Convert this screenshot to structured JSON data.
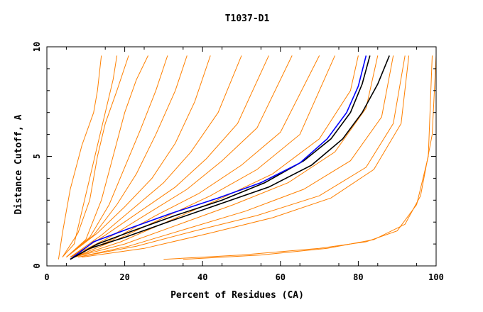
{
  "chart_data": {
    "type": "line",
    "title": "T1037-D1",
    "xlabel": "Percent of Residues (CA)",
    "ylabel": "Distance Cutoff, A",
    "xlim": [
      0,
      100
    ],
    "ylim": [
      0,
      10
    ],
    "x_ticks": [
      "0",
      "20",
      "40",
      "60",
      "80",
      "100"
    ],
    "y_ticks": [
      "0",
      "5",
      "10"
    ],
    "grid": false,
    "legend": "none",
    "colors": {
      "models": "#ff8000",
      "highlight_a": "#000000",
      "highlight_b": "#0000ff",
      "highlight_c": "#000000"
    },
    "series": [
      {
        "values": [
          [
            3,
            0.3
          ],
          [
            4,
            1.5
          ],
          [
            6,
            3.5
          ],
          [
            9,
            5.5
          ],
          [
            12,
            7
          ],
          [
            13,
            8
          ],
          [
            14,
            9.6
          ]
        ]
      },
      {
        "values": [
          [
            4,
            0.4
          ],
          [
            7,
            1
          ],
          [
            9,
            2.5
          ],
          [
            11,
            4
          ],
          [
            13,
            5.5
          ],
          [
            15,
            7
          ],
          [
            17,
            8.5
          ],
          [
            18,
            9.6
          ]
        ]
      },
      {
        "values": [
          [
            4,
            0.4
          ],
          [
            8,
            1.5
          ],
          [
            11,
            3
          ],
          [
            13,
            5
          ],
          [
            15,
            6.5
          ],
          [
            18,
            8
          ],
          [
            21,
            9.6
          ]
        ]
      },
      {
        "values": [
          [
            5,
            0.4
          ],
          [
            10,
            1.2
          ],
          [
            14,
            3
          ],
          [
            17,
            5
          ],
          [
            20,
            7
          ],
          [
            23,
            8.5
          ],
          [
            26,
            9.6
          ]
        ]
      },
      {
        "values": [
          [
            5,
            0.4
          ],
          [
            11,
            1.3
          ],
          [
            16,
            2.8
          ],
          [
            20,
            4.5
          ],
          [
            24,
            6.2
          ],
          [
            28,
            8
          ],
          [
            31,
            9.6
          ]
        ]
      },
      {
        "values": [
          [
            5,
            0.4
          ],
          [
            12,
            1.4
          ],
          [
            18,
            2.8
          ],
          [
            23,
            4.2
          ],
          [
            28,
            6
          ],
          [
            33,
            8
          ],
          [
            36,
            9.6
          ]
        ]
      },
      {
        "values": [
          [
            5,
            0.4
          ],
          [
            13,
            1.5
          ],
          [
            20,
            2.7
          ],
          [
            27,
            4
          ],
          [
            33,
            5.6
          ],
          [
            38,
            7.5
          ],
          [
            42,
            9.6
          ]
        ]
      },
      {
        "values": [
          [
            6,
            0.4
          ],
          [
            14,
            1.4
          ],
          [
            22,
            2.6
          ],
          [
            30,
            3.8
          ],
          [
            37,
            5.2
          ],
          [
            44,
            7
          ],
          [
            50,
            9.6
          ]
        ]
      },
      {
        "values": [
          [
            6,
            0.4
          ],
          [
            15,
            1.4
          ],
          [
            24,
            2.5
          ],
          [
            33,
            3.6
          ],
          [
            41,
            4.9
          ],
          [
            49,
            6.5
          ],
          [
            57,
            9.6
          ]
        ]
      },
      {
        "values": [
          [
            6,
            0.4
          ],
          [
            16,
            1.3
          ],
          [
            26,
            2.4
          ],
          [
            36,
            3.5
          ],
          [
            45,
            4.8
          ],
          [
            54,
            6.3
          ],
          [
            63,
            9.6
          ]
        ]
      },
      {
        "values": [
          [
            6,
            0.4
          ],
          [
            17,
            1.2
          ],
          [
            28,
            2.3
          ],
          [
            39,
            3.3
          ],
          [
            50,
            4.6
          ],
          [
            60,
            6.1
          ],
          [
            70,
            9.6
          ]
        ]
      },
      {
        "values": [
          [
            7,
            0.4
          ],
          [
            18,
            1.2
          ],
          [
            30,
            2.2
          ],
          [
            42,
            3.2
          ],
          [
            54,
            4.4
          ],
          [
            65,
            6
          ],
          [
            74,
            9.6
          ]
        ]
      },
      {
        "values": [
          [
            7,
            0.4
          ],
          [
            19,
            1.1
          ],
          [
            32,
            2.1
          ],
          [
            45,
            3.1
          ],
          [
            58,
            4.2
          ],
          [
            70,
            5.8
          ],
          [
            78,
            8
          ],
          [
            80,
            9.6
          ]
        ]
      },
      {
        "values": [
          [
            7,
            0.4
          ],
          [
            20,
            1
          ],
          [
            34,
            1.9
          ],
          [
            48,
            2.8
          ],
          [
            62,
            3.8
          ],
          [
            74,
            5.2
          ],
          [
            82,
            7.2
          ],
          [
            85,
            9.6
          ]
        ]
      },
      {
        "values": [
          [
            8,
            0.4
          ],
          [
            21,
            0.9
          ],
          [
            36,
            1.7
          ],
          [
            51,
            2.5
          ],
          [
            66,
            3.5
          ],
          [
            78,
            4.8
          ],
          [
            86,
            6.8
          ],
          [
            89,
            9.6
          ]
        ]
      },
      {
        "values": [
          [
            8,
            0.4
          ],
          [
            23,
            0.9
          ],
          [
            38,
            1.6
          ],
          [
            54,
            2.3
          ],
          [
            70,
            3.2
          ],
          [
            82,
            4.5
          ],
          [
            89,
            6.5
          ],
          [
            92,
            9.6
          ]
        ]
      },
      {
        "values": [
          [
            9,
            0.4
          ],
          [
            25,
            0.8
          ],
          [
            42,
            1.5
          ],
          [
            58,
            2.2
          ],
          [
            73,
            3.1
          ],
          [
            84,
            4.4
          ],
          [
            91,
            6.5
          ],
          [
            93,
            9.6
          ]
        ]
      },
      {
        "values": [
          [
            30,
            0.3
          ],
          [
            50,
            0.5
          ],
          [
            70,
            0.8
          ],
          [
            82,
            1.1
          ],
          [
            90,
            1.6
          ],
          [
            95,
            2.8
          ],
          [
            98,
            5
          ],
          [
            99,
            9.6
          ]
        ]
      },
      {
        "values": [
          [
            35,
            0.3
          ],
          [
            55,
            0.5
          ],
          [
            72,
            0.8
          ],
          [
            84,
            1.2
          ],
          [
            92,
            1.9
          ],
          [
            96,
            3.2
          ],
          [
            99,
            6
          ],
          [
            100,
            9.6
          ]
        ]
      }
    ],
    "highlight_series": [
      {
        "values": [
          [
            6,
            0.3
          ],
          [
            13,
            1
          ],
          [
            22,
            1.6
          ],
          [
            33,
            2.3
          ],
          [
            45,
            3
          ],
          [
            56,
            3.8
          ],
          [
            66,
            4.8
          ],
          [
            73,
            5.8
          ],
          [
            78,
            7
          ],
          [
            81,
            8.3
          ],
          [
            83,
            9.6
          ]
        ]
      },
      {
        "values": [
          [
            6,
            0.3
          ],
          [
            12,
            1.1
          ],
          [
            21,
            1.7
          ],
          [
            32,
            2.4
          ],
          [
            44,
            3.1
          ],
          [
            55,
            3.8
          ],
          [
            65,
            4.7
          ],
          [
            72,
            5.8
          ],
          [
            77,
            7
          ],
          [
            80,
            8.2
          ],
          [
            82,
            9.6
          ]
        ]
      },
      {
        "values": [
          [
            6,
            0.3
          ],
          [
            11,
            0.8
          ],
          [
            20,
            1.3
          ],
          [
            31,
            2
          ],
          [
            44,
            2.8
          ],
          [
            57,
            3.6
          ],
          [
            68,
            4.6
          ],
          [
            76,
            5.8
          ],
          [
            81,
            7
          ],
          [
            85,
            8.3
          ],
          [
            88,
            9.6
          ]
        ]
      }
    ]
  }
}
